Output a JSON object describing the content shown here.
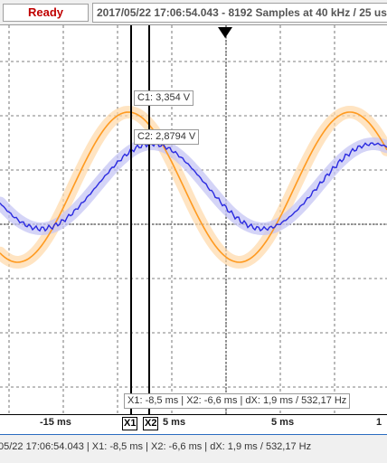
{
  "toolbar": {
    "status": "Ready",
    "info": "2017/05/22  17:06:54.043 - 8192 Samples at 40 kHz / 25 us"
  },
  "cursors": {
    "c1_label": "C1: 3,354 V",
    "c2_label": "C2: 2,8794 V",
    "measure_label": "X1: -8,5 ms | X2: -6,6 ms | dX: 1,9 ms / 532,17 Hz",
    "x1_marker": "X1",
    "x2_marker": "X2"
  },
  "xaxis": {
    "ticks": [
      "-15 ms",
      "5 ms",
      "5 ms",
      "1"
    ]
  },
  "statusbar": {
    "text": "05/22  17:06:54.043  | X1: -8,5 ms | X2: -6,6 ms | dX: 1,9 ms / 532,17 Hz"
  },
  "colors": {
    "orange": "#ff9a20",
    "blue": "#2a2ae0",
    "grid": "#000000"
  },
  "icons": {
    "trigger": "triangle-down-icon"
  }
}
